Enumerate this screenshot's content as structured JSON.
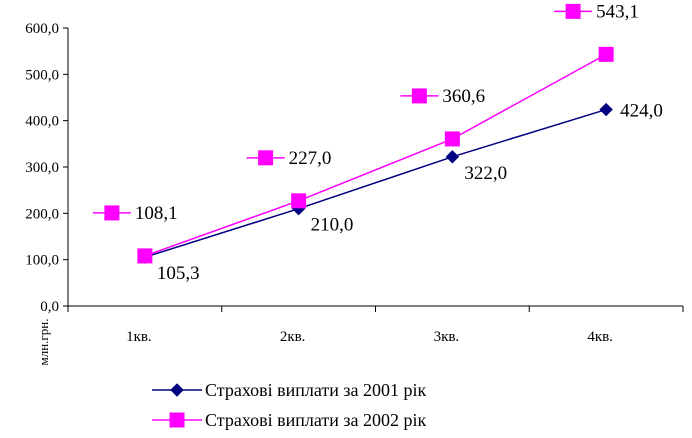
{
  "chart_data": {
    "type": "line",
    "categories": [
      "1кв.",
      "2кв.",
      "3кв.",
      "4кв."
    ],
    "ylabel": "млн.грн.",
    "xlabel": "",
    "ylim": [
      0,
      600
    ],
    "yticks": [
      "0,0",
      "100,0",
      "200,0",
      "300,0",
      "400,0",
      "500,0",
      "600,0"
    ],
    "ytick_values": [
      0,
      100,
      200,
      300,
      400,
      500,
      600
    ],
    "grid": false,
    "legend_position": "bottom",
    "series": [
      {
        "name": "Страхові виплати за 2001 рік",
        "values": [
          105.3,
          210.0,
          322.0,
          424.0
        ],
        "labels": [
          "105,3",
          "210,0",
          "322,0",
          "424,0"
        ],
        "color": "#000080",
        "marker": "diamond"
      },
      {
        "name": "Страхові виплати за 2002 рік",
        "values": [
          108.1,
          227.0,
          360.6,
          543.1
        ],
        "labels": [
          "108,1",
          "227,0",
          "360,6",
          "543,1"
        ],
        "color": "#ff00ff",
        "marker": "square"
      }
    ]
  }
}
